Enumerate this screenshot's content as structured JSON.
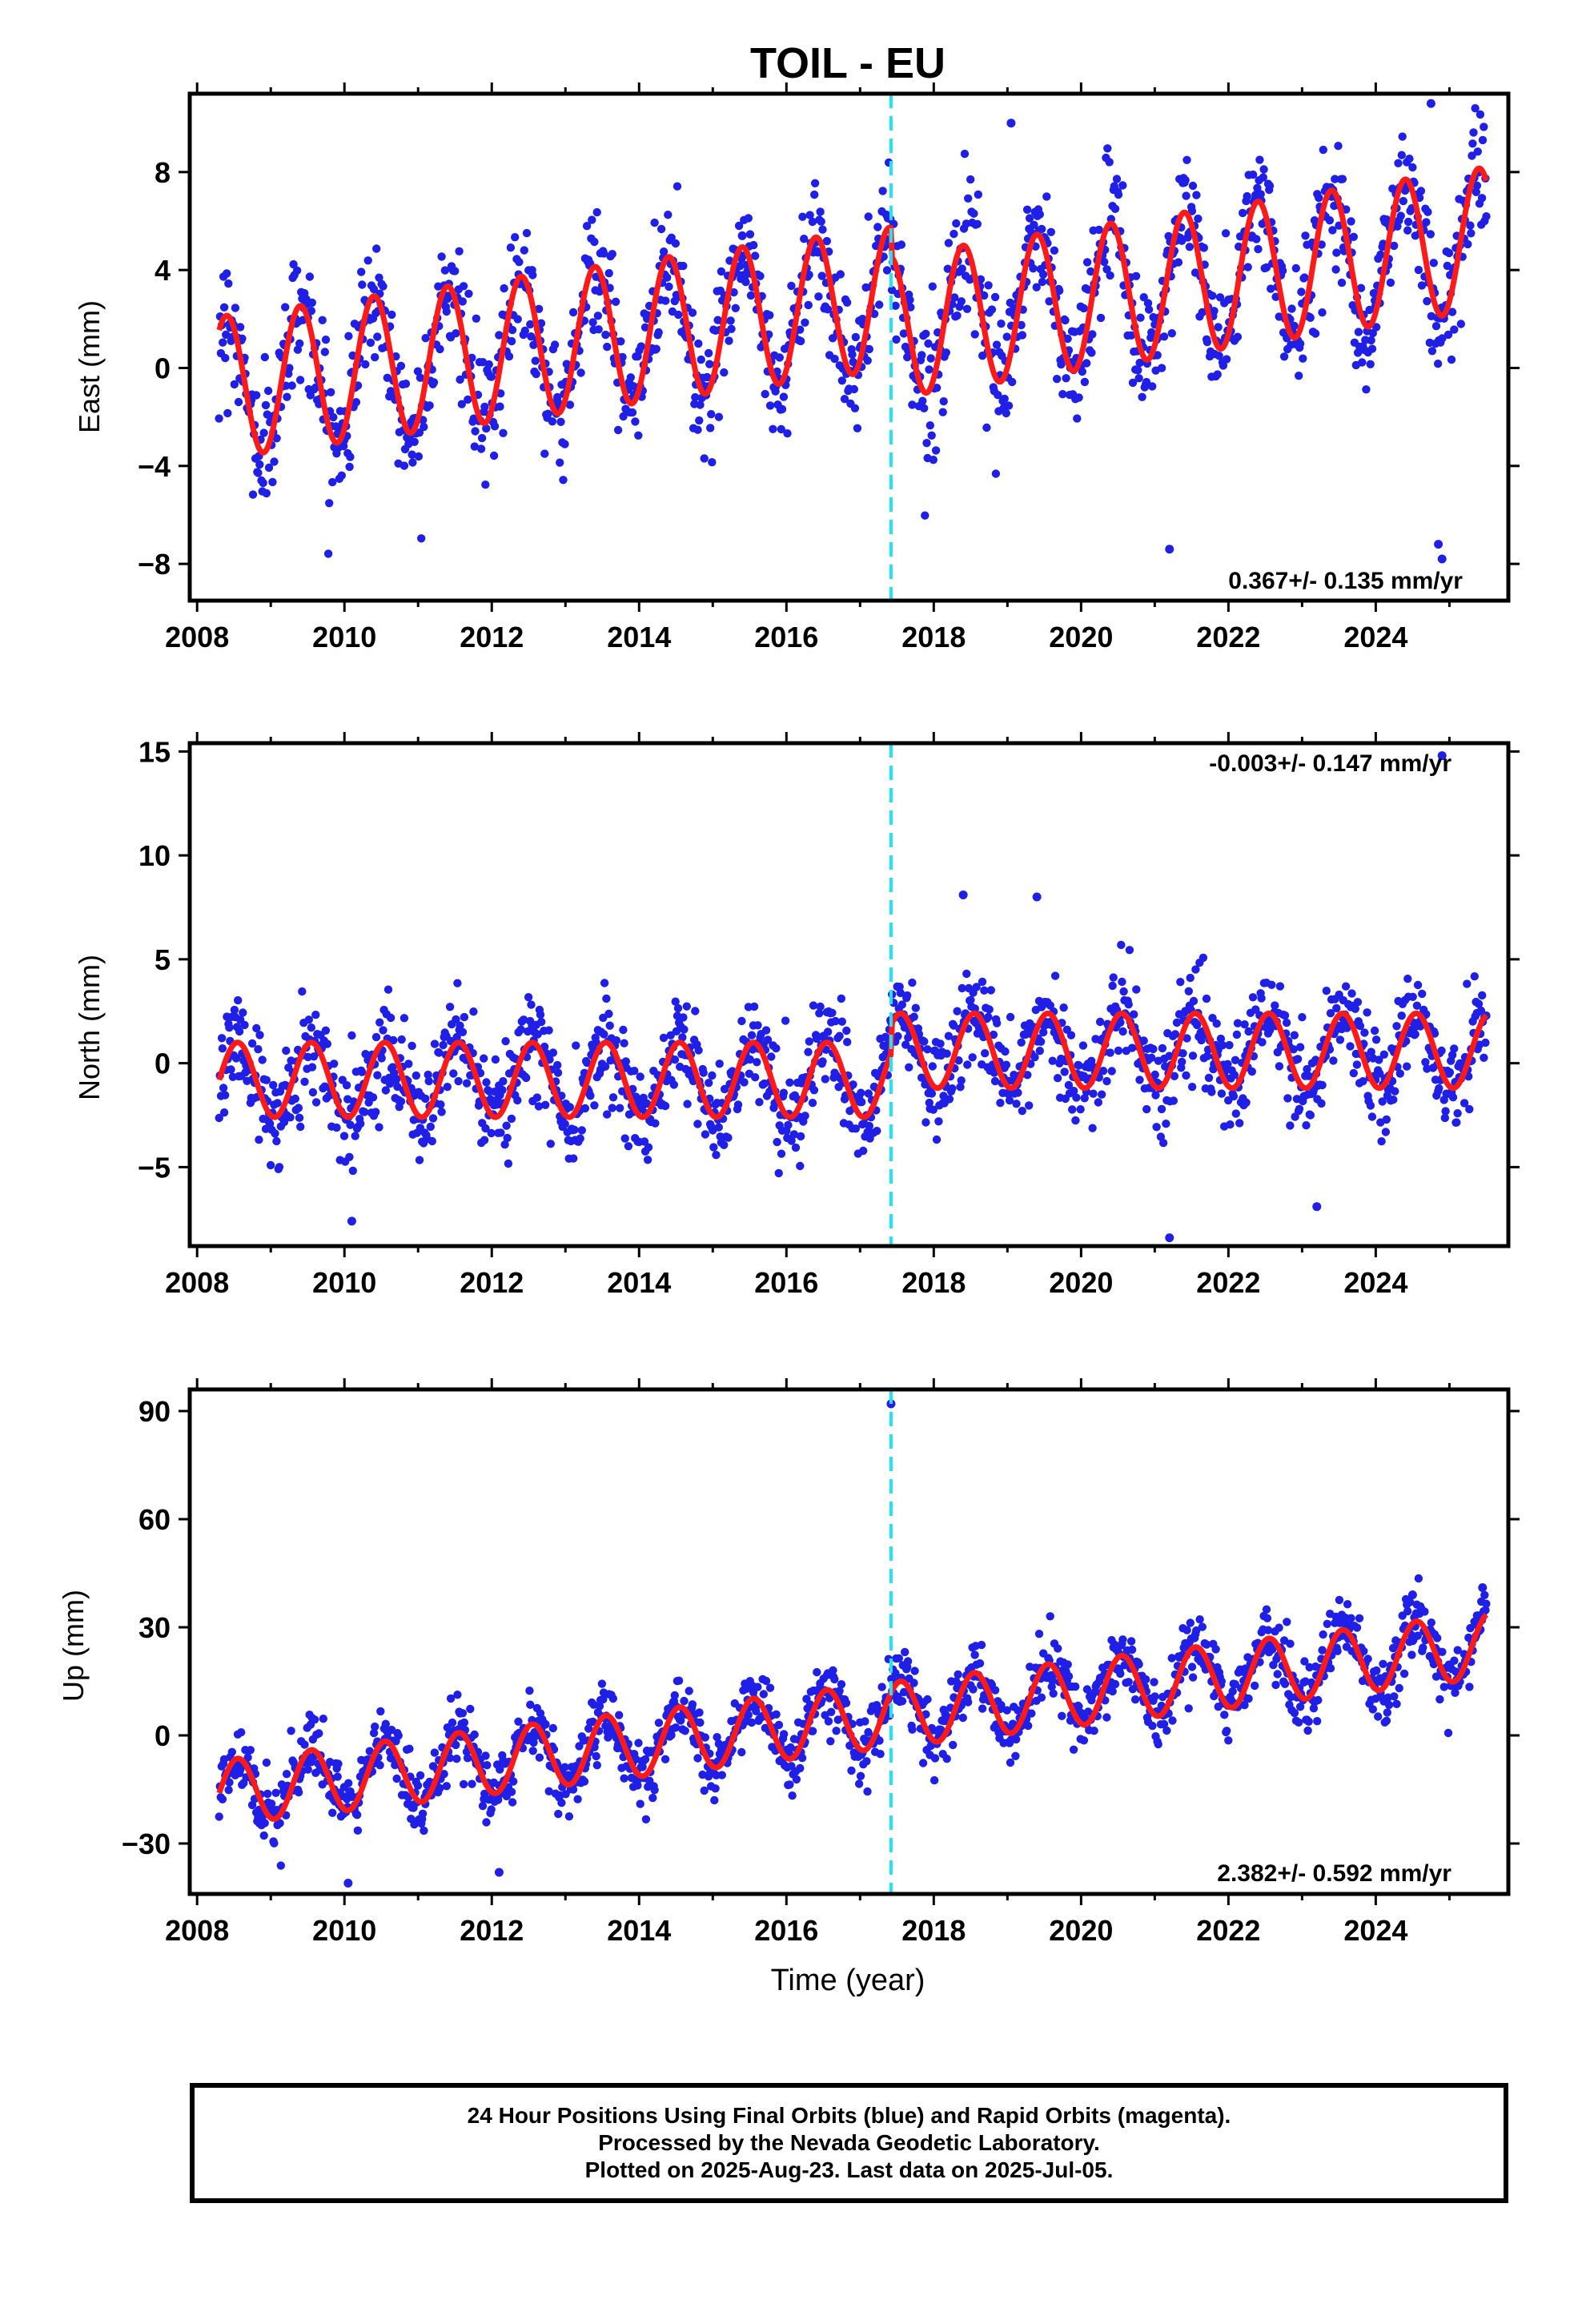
{
  "page": {
    "title": "TOIL - EU"
  },
  "colors": {
    "data": "#1f1fe6",
    "model": "#ff1a1a",
    "offset": "#22e3ff",
    "frame": "#000000"
  },
  "panels": [
    {
      "id": "east",
      "ylabel": "East (mm)",
      "rate": "0.367+/- 0.135 mm/yr",
      "rate_position": "bottom-right",
      "xticks": [
        "2008",
        "2010",
        "2012",
        "2014",
        "2016",
        "2018",
        "2020",
        "2022",
        "2024"
      ],
      "yticks": [
        "−8",
        "−4",
        "0",
        "4",
        "8"
      ]
    },
    {
      "id": "north",
      "ylabel": "North (mm)",
      "rate": "-0.003+/- 0.147 mm/yr",
      "rate_position": "top-right",
      "xticks": [
        "2008",
        "2010",
        "2012",
        "2014",
        "2016",
        "2018",
        "2020",
        "2022",
        "2024"
      ],
      "yticks": [
        "−5",
        "0",
        "5",
        "10",
        "15"
      ]
    },
    {
      "id": "up",
      "ylabel": "Up (mm)",
      "rate": "2.382+/- 0.592 mm/yr",
      "rate_position": "bottom-right",
      "xticks": [
        "2008",
        "2010",
        "2012",
        "2014",
        "2016",
        "2018",
        "2020",
        "2022",
        "2024"
      ],
      "yticks": [
        "−30",
        "0",
        "30",
        "60",
        "90"
      ],
      "xlabel": "Time (year)"
    }
  ],
  "notes": [
    "24 Hour Positions Using Final Orbits (blue) and Rapid Orbits (magenta).",
    "Processed by the Nevada Geodetic Laboratory.",
    "Plotted on 2025-Aug-23. Last data on 2025-Jul-05."
  ],
  "chart_data": [
    {
      "type": "scatter",
      "panel": "east",
      "ylabel": "East (mm)",
      "xlim": [
        2007.9,
        2025.8
      ],
      "ylim": [
        -9.5,
        11.2
      ],
      "yticks": [
        -8,
        -4,
        0,
        4,
        8
      ],
      "xticks": [
        2008,
        2010,
        2012,
        2014,
        2016,
        2018,
        2020,
        2022,
        2024
      ],
      "grid": false,
      "data_range": [
        2008.3,
        2025.5
      ],
      "offset_epoch": 2017.42,
      "rate_mm_per_yr": 0.367,
      "rate_sigma": 0.135,
      "model": {
        "pre_offset_at_2008.3": -0.8,
        "pre_offset_trend": 0.4,
        "post_offset_at_2017.5": 1.7,
        "post_offset_trend": 0.45,
        "annual_amplitude": 2.9,
        "annual_peak_phase": 0.4
      },
      "scatter_sd": 1.3,
      "outliers": [
        [
          2024.75,
          10.8
        ],
        [
          2021.2,
          -7.4
        ],
        [
          2024.85,
          -7.2
        ],
        [
          2024.9,
          -7.8
        ],
        [
          2019.05,
          10.0
        ],
        [
          2015.4,
          5.4
        ]
      ]
    },
    {
      "type": "scatter",
      "panel": "north",
      "ylabel": "North (mm)",
      "xlim": [
        2007.9,
        2025.8
      ],
      "ylim": [
        -8.8,
        15.4
      ],
      "yticks": [
        -5,
        0,
        5,
        10,
        15
      ],
      "xticks": [
        2008,
        2010,
        2012,
        2014,
        2016,
        2018,
        2020,
        2022,
        2024
      ],
      "grid": false,
      "data_range": [
        2008.3,
        2025.5
      ],
      "offset_epoch": 2017.42,
      "rate_mm_per_yr": -0.003,
      "rate_sigma": 0.147,
      "model": {
        "pre_offset_level": -0.8,
        "post_offset_level": 0.6,
        "annual_amplitude": 1.8,
        "annual_peak_phase": 0.55
      },
      "scatter_sd": 1.2,
      "outliers": [
        [
          2024.9,
          14.8
        ],
        [
          2018.4,
          8.1
        ],
        [
          2019.4,
          8.0
        ],
        [
          2021.2,
          -8.4
        ],
        [
          2010.1,
          -7.6
        ],
        [
          2023.2,
          -6.9
        ]
      ]
    },
    {
      "type": "scatter",
      "panel": "up",
      "ylabel": "Up (mm)",
      "xlabel": "Time (year)",
      "xlim": [
        2007.9,
        2025.8
      ],
      "ylim": [
        -44,
        96
      ],
      "yticks": [
        -30,
        0,
        30,
        60,
        90
      ],
      "xticks": [
        2008,
        2010,
        2012,
        2014,
        2016,
        2018,
        2020,
        2022,
        2024
      ],
      "grid": false,
      "data_range": [
        2008.3,
        2025.5
      ],
      "offset_epoch": 2017.42,
      "rate_mm_per_yr": 2.382,
      "rate_sigma": 0.592,
      "model": {
        "value_at_2008.3": -16,
        "trend": 2.38,
        "annual_amplitude": 9,
        "annual_peak_phase": 0.55
      },
      "scatter_sd": 4.5,
      "outliers": [
        [
          2017.42,
          92
        ],
        [
          2025.45,
          41
        ],
        [
          2010.05,
          -41
        ],
        [
          2012.1,
          -38
        ],
        [
          2024.5,
          39
        ]
      ]
    }
  ]
}
